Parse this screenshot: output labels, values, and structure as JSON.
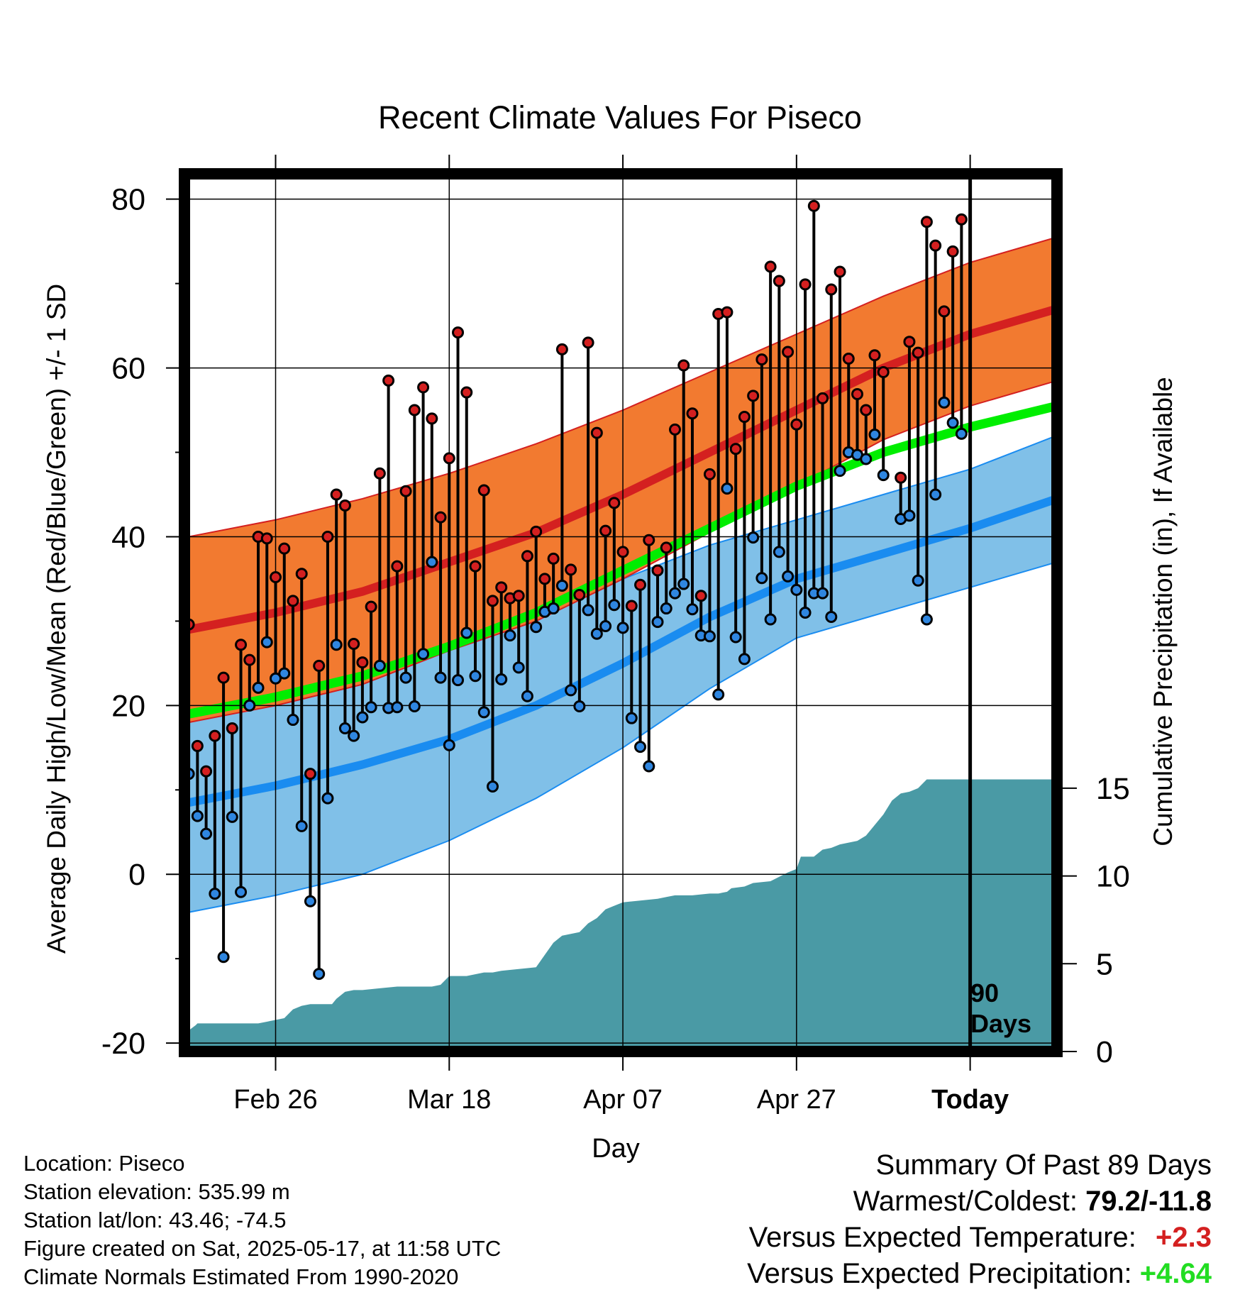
{
  "chart_data": {
    "type": "line",
    "title": "Recent Climate Values For Piseco",
    "xlabel": "Day",
    "ylabel": "Average Daily High/Low/Mean (Red/Blue/Green) +/- 1 SD",
    "y2label": "Cumulative Precipitation (in), If Available",
    "xlim": [
      -0.5,
      100
    ],
    "ylim": [
      -21,
      83
    ],
    "y2lim": [
      0,
      50
    ],
    "x_ticks": [
      {
        "label": "Feb 26",
        "day": 10
      },
      {
        "label": "Mar 18",
        "day": 30
      },
      {
        "label": "Apr 07",
        "day": 50
      },
      {
        "label": "Apr 27",
        "day": 70
      },
      {
        "label": "Today",
        "day": 90
      }
    ],
    "y_ticks": [
      -20,
      0,
      20,
      40,
      60,
      80
    ],
    "y2_ticks": [
      0,
      5,
      10,
      15
    ],
    "today_marker": {
      "day": 90,
      "label_line1": "90",
      "label_line2": "Days"
    },
    "normal_high": {
      "name": "Normal High",
      "x": [
        0,
        10,
        20,
        30,
        40,
        50,
        60,
        70,
        80,
        90,
        100
      ],
      "mean": [
        29,
        31,
        33.5,
        37,
        40.5,
        45,
        50,
        55,
        60,
        64,
        67
      ],
      "sd": [
        11,
        11,
        11,
        10.5,
        10.5,
        10,
        9.5,
        9,
        8.5,
        8.5,
        8.5
      ]
    },
    "normal_low": {
      "name": "Normal Low",
      "x": [
        0,
        10,
        20,
        30,
        40,
        50,
        60,
        70,
        80,
        90,
        100
      ],
      "mean": [
        8.5,
        10.5,
        13,
        16,
        20,
        25,
        30.5,
        35,
        38,
        41,
        44.5
      ],
      "sd": [
        13,
        13,
        13,
        12,
        11,
        10,
        8.5,
        7,
        7,
        7,
        7.5
      ]
    },
    "normal_mean": {
      "name": "Normal Mean",
      "x": [
        0,
        10,
        20,
        30,
        40,
        50,
        60,
        70,
        80,
        90,
        100
      ],
      "values": [
        19,
        21,
        23.5,
        27,
        31,
        36,
        41,
        46,
        50,
        53,
        55.5
      ]
    },
    "observed_high": [
      29.6,
      15.2,
      12.2,
      16.4,
      23.3,
      17.3,
      27.2,
      25.4,
      40,
      39.8,
      35.2,
      38.6,
      32.4,
      35.6,
      11.9,
      24.7,
      40,
      45,
      43.7,
      27.3,
      25.1,
      31.7,
      47.5,
      58.5,
      36.5,
      45.4,
      55,
      57.7,
      54,
      42.3,
      49.3,
      64.2,
      57.1,
      36.5,
      45.5,
      32.4,
      34,
      32.7,
      33,
      37.7,
      40.6,
      35,
      37.4,
      62.2,
      36.1,
      33.1,
      63,
      52.3,
      40.7,
      44,
      38.2,
      31.8,
      34.3,
      39.6,
      36,
      38.7,
      52.7,
      60.3,
      54.6,
      33,
      47.4,
      66.4,
      66.6,
      50.4,
      54.2,
      56.7,
      61,
      72,
      70.3,
      61.9,
      53.3,
      69.9,
      79.2,
      56.4,
      69.3,
      71.4,
      61.1,
      56.9,
      55,
      61.5,
      59.5,
      null,
      47,
      63.1,
      61.8,
      77.3,
      74.5,
      66.7,
      73.8,
      77.6
    ],
    "observed_low": [
      11.9,
      6.9,
      4.8,
      -2.3,
      -9.8,
      6.8,
      -2.1,
      20,
      22.1,
      27.5,
      23.2,
      23.8,
      18.3,
      5.7,
      -3.2,
      -11.8,
      9,
      27.2,
      17.3,
      16.4,
      18.6,
      19.8,
      24.7,
      19.7,
      19.8,
      23.3,
      19.9,
      26.1,
      37,
      23.3,
      15.3,
      23,
      28.6,
      23.5,
      19.2,
      10.4,
      23.1,
      28.3,
      24.5,
      21.1,
      29.3,
      31.1,
      31.5,
      34.2,
      21.8,
      19.9,
      31.3,
      28.5,
      29.4,
      31.9,
      29.2,
      18.5,
      15.1,
      12.8,
      29.9,
      31.5,
      33.3,
      34.4,
      31.4,
      28.3,
      28.2,
      21.3,
      45.7,
      28.1,
      25.5,
      39.9,
      35.1,
      30.2,
      38.2,
      35.3,
      33.7,
      31,
      33.3,
      33.3,
      30.5,
      47.8,
      50,
      49.7,
      49.2,
      52.1,
      47.3,
      null,
      42.1,
      42.5,
      34.8,
      30.2,
      45,
      55.9,
      53.5,
      52.2
    ],
    "cumulative_precip": {
      "x": [
        0,
        0.8,
        1,
        3,
        5,
        8,
        9,
        10,
        11,
        12,
        13,
        14,
        15,
        16,
        16.5,
        17,
        18,
        19,
        20,
        22,
        24,
        27,
        28,
        29,
        30,
        31,
        32,
        33,
        34,
        35,
        36,
        38,
        40,
        41,
        42,
        43,
        44,
        45,
        46,
        47,
        48,
        49,
        50,
        52,
        54,
        55,
        56,
        58,
        60,
        61,
        62,
        62.5,
        64,
        65,
        67,
        69,
        70,
        70.5,
        72,
        73,
        74,
        75,
        76,
        77,
        78,
        79,
        80,
        81,
        82,
        83,
        84,
        85,
        86,
        88,
        90,
        100
      ],
      "values": [
        1.2,
        1.5,
        1.6,
        1.6,
        1.6,
        1.6,
        1.7,
        1.8,
        1.9,
        2.4,
        2.6,
        2.7,
        2.7,
        2.7,
        2.7,
        3,
        3.4,
        3.5,
        3.5,
        3.6,
        3.7,
        3.7,
        3.7,
        3.8,
        4.3,
        4.3,
        4.3,
        4.4,
        4.5,
        4.5,
        4.6,
        4.7,
        4.8,
        5.5,
        6.2,
        6.6,
        6.7,
        6.8,
        7.3,
        7.6,
        8.1,
        8.3,
        8.5,
        8.6,
        8.7,
        8.8,
        8.9,
        8.9,
        9,
        9,
        9.1,
        9.3,
        9.4,
        9.6,
        9.7,
        10.2,
        10.4,
        11.1,
        11.1,
        11.5,
        11.6,
        11.8,
        11.9,
        12,
        12.3,
        12.9,
        13.5,
        14.3,
        14.7,
        14.8,
        15,
        15.5,
        15.5,
        15.5,
        15.5,
        15.5
      ]
    },
    "colors": {
      "high_band": "#f27a30",
      "high_line": "#d42020",
      "low_band": "#80c0e8",
      "low_line": "#1a8cf0",
      "mean_line": "#00ee00",
      "precip": "#4a9aa5",
      "high_dot": "#d42020",
      "low_dot": "#2f86e0"
    }
  },
  "footer": {
    "location": "Location: Piseco",
    "elevation": "Station elevation: 535.99 m",
    "latlon": "Station lat/lon: 43.46; -74.5",
    "created": "Figure created on Sat, 2025-05-17, at 11:58 UTC",
    "normals": "Climate Normals Estimated From 1990-2020"
  },
  "summary": {
    "title": "Summary Of Past 89 Days",
    "warmest_coldest_label": "Warmest/Coldest: ",
    "warmest_coldest_value": "79.2/-11.8",
    "temp_label": "Versus Expected Temperature:",
    "temp_value": "+2.3",
    "temp_color": "#d42020",
    "precip_label": "Versus Expected Precipitation:",
    "precip_value": "+4.64",
    "precip_color": "#22dd22"
  }
}
